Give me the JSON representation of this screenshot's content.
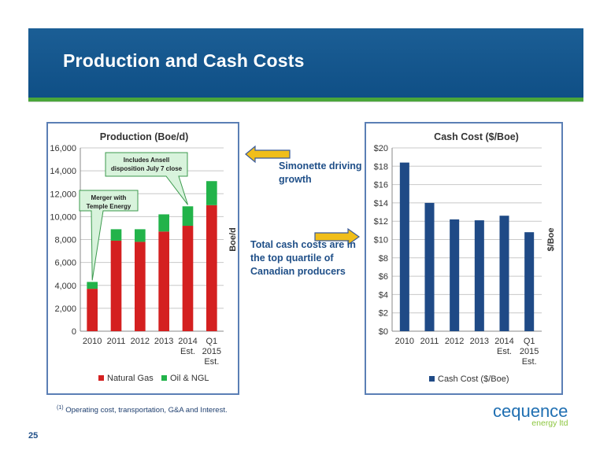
{
  "slide": {
    "title": "Production and Cash Costs",
    "page_number": "25",
    "footnote_marker": "(1)",
    "footnote_text": "Operating cost, transportation, G&A and Interest."
  },
  "notes": {
    "simonette": "Simonette driving growth",
    "total_cash": "Total cash costs are in the top quartile of Canadian producers"
  },
  "logo": {
    "main": "cequence",
    "sub": "energy ltd"
  },
  "colors": {
    "header_blue": "#0f4f86",
    "header_green": "#4aa63a",
    "natural_gas": "#d42020",
    "oil_ngl": "#22b34a",
    "cash_cost": "#1f4a86",
    "arrow_fill": "#f0be1a"
  },
  "chart_data": [
    {
      "type": "bar",
      "stacked": true,
      "title": "Production (Boe/d)",
      "ylabel": "Boe/d",
      "xlabel": "",
      "ylim": [
        0,
        16000
      ],
      "ytick_values": [
        0,
        2000,
        4000,
        6000,
        8000,
        10000,
        12000,
        14000,
        16000
      ],
      "yticks": [
        "0",
        "2,000",
        "4,000",
        "6,000",
        "8,000",
        "10,000",
        "12,000",
        "14,000",
        "16,000"
      ],
      "categories": [
        [
          "2010"
        ],
        [
          "2011"
        ],
        [
          "2012"
        ],
        [
          "2013"
        ],
        [
          "2014",
          "Est."
        ],
        [
          "Q1",
          "2015",
          "Est."
        ]
      ],
      "series": [
        {
          "name": "Natural Gas",
          "color": "#d42020",
          "values": [
            3700,
            7900,
            7800,
            8700,
            9200,
            11000
          ]
        },
        {
          "name": "Oil & NGL",
          "color": "#22b34a",
          "values": [
            600,
            1000,
            1100,
            1500,
            1700,
            2100
          ]
        }
      ],
      "grid": true,
      "legend": "bottom",
      "annotations": [
        {
          "lines": [
            "Merger with",
            "Temple Energy"
          ],
          "target": "2010"
        },
        {
          "lines": [
            "Includes  Ansell",
            "disposition  July 7 close"
          ],
          "target": "2014 Est."
        }
      ]
    },
    {
      "type": "bar",
      "title": "Cash Cost ($/Boe)",
      "ylabel": "$/Boe",
      "xlabel": "",
      "ylim": [
        0,
        20
      ],
      "ytick_values": [
        0,
        2,
        4,
        6,
        8,
        10,
        12,
        14,
        16,
        18,
        20
      ],
      "yticks": [
        "$0",
        "$2",
        "$4",
        "$6",
        "$8",
        "$10",
        "$12",
        "$14",
        "$16",
        "$18",
        "$20"
      ],
      "categories": [
        [
          "2010"
        ],
        [
          "2011"
        ],
        [
          "2012"
        ],
        [
          "2013"
        ],
        [
          "2014",
          "Est."
        ],
        [
          "Q1",
          "2015",
          "Est."
        ]
      ],
      "series": [
        {
          "name": "Cash Cost ($/Boe)",
          "color": "#1f4a86",
          "values": [
            18.4,
            14.0,
            12.2,
            12.1,
            12.6,
            10.8
          ]
        }
      ],
      "grid": true,
      "legend": "bottom"
    }
  ]
}
